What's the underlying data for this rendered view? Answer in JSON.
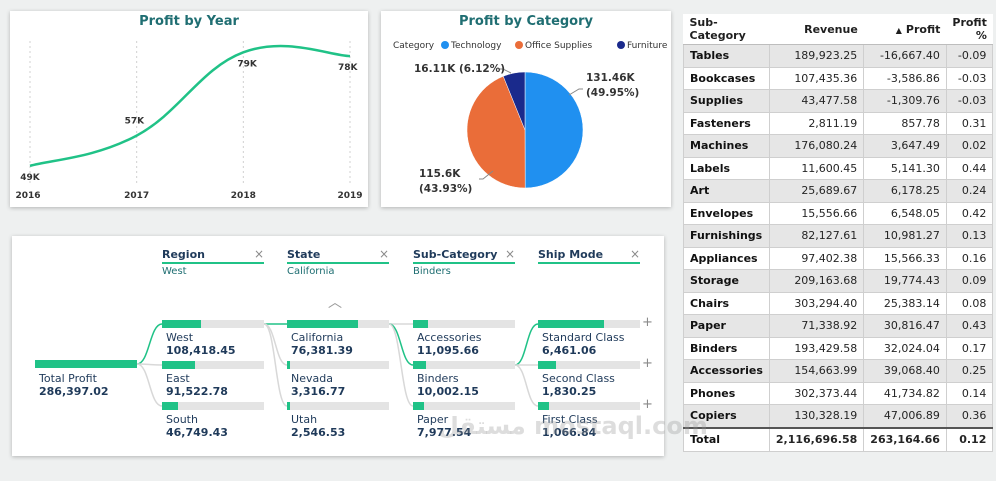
{
  "profit_by_year": {
    "title": "Profit by Year",
    "chart_data": {
      "type": "line",
      "x": [
        "2016",
        "2017",
        "2018",
        "2019"
      ],
      "y": [
        49,
        57,
        79,
        78
      ],
      "labels": [
        "49K",
        "57K",
        "79K",
        "78K"
      ],
      "ylim": [
        45,
        82
      ],
      "color": "#20c287"
    }
  },
  "profit_by_category": {
    "title": "Profit by Category",
    "legend_title": "Category",
    "chart_data": {
      "type": "pie",
      "slices": [
        {
          "name": "Technology",
          "value": 131.46,
          "label": "131.46K",
          "pct": "(49.95%)",
          "color": "#2090f0"
        },
        {
          "name": "Office Supplies",
          "value": 115.6,
          "label": "115.6K",
          "pct": "(43.93%)",
          "color": "#ea6d39"
        },
        {
          "name": "Furniture",
          "value": 16.11,
          "label": "16.11K (6.12%)",
          "pct": "",
          "color": "#1a2a8c"
        }
      ]
    }
  },
  "decomp": {
    "root": {
      "label": "Total Profit",
      "value": "286,397.02",
      "fill": 1.0
    },
    "levels": [
      {
        "title": "Region",
        "sub": "West",
        "nodes": [
          {
            "label": "West",
            "value": "108,418.45",
            "fill": 0.38
          },
          {
            "label": "East",
            "value": "91,522.78",
            "fill": 0.32
          },
          {
            "label": "South",
            "value": "46,749.43",
            "fill": 0.16
          }
        ]
      },
      {
        "title": "State",
        "sub": "California",
        "nodes": [
          {
            "label": "California",
            "value": "76,381.39",
            "fill": 0.7
          },
          {
            "label": "Nevada",
            "value": "3,316.77",
            "fill": 0.03
          },
          {
            "label": "Utah",
            "value": "2,546.53",
            "fill": 0.025
          }
        ]
      },
      {
        "title": "Sub-Category",
        "sub": "Binders",
        "nodes": [
          {
            "label": "Accessories",
            "value": "11,095.66",
            "fill": 0.145
          },
          {
            "label": "Binders",
            "value": "10,002.15",
            "fill": 0.13
          },
          {
            "label": "Paper",
            "value": "7,977.54",
            "fill": 0.105
          }
        ]
      },
      {
        "title": "Ship Mode",
        "sub": "",
        "nodes": [
          {
            "label": "Standard Class",
            "value": "6,461.06",
            "fill": 0.65
          },
          {
            "label": "Second Class",
            "value": "1,830.25",
            "fill": 0.18
          },
          {
            "label": "First Class",
            "value": "1,066.84",
            "fill": 0.11
          }
        ]
      }
    ]
  },
  "table": {
    "headers": [
      "Sub-Category",
      "Revenue",
      "Profit",
      "Profit %"
    ],
    "sort_arrow": "▲",
    "rows": [
      [
        "Tables",
        "189,923.25",
        "-16,667.40",
        "-0.09"
      ],
      [
        "Bookcases",
        "107,435.36",
        "-3,586.86",
        "-0.03"
      ],
      [
        "Supplies",
        "43,477.58",
        "-1,309.76",
        "-0.03"
      ],
      [
        "Fasteners",
        "2,811.19",
        "857.78",
        "0.31"
      ],
      [
        "Machines",
        "176,080.24",
        "3,647.49",
        "0.02"
      ],
      [
        "Labels",
        "11,600.45",
        "5,141.30",
        "0.44"
      ],
      [
        "Art",
        "25,689.67",
        "6,178.25",
        "0.24"
      ],
      [
        "Envelopes",
        "15,556.66",
        "6,548.05",
        "0.42"
      ],
      [
        "Furnishings",
        "82,127.61",
        "10,981.27",
        "0.13"
      ],
      [
        "Appliances",
        "97,402.38",
        "15,566.33",
        "0.16"
      ],
      [
        "Storage",
        "209,163.68",
        "19,774.43",
        "0.09"
      ],
      [
        "Chairs",
        "303,294.40",
        "25,383.14",
        "0.08"
      ],
      [
        "Paper",
        "71,338.92",
        "30,816.47",
        "0.43"
      ],
      [
        "Binders",
        "193,429.58",
        "32,024.04",
        "0.17"
      ],
      [
        "Accessories",
        "154,663.99",
        "39,068.40",
        "0.25"
      ],
      [
        "Phones",
        "302,373.44",
        "41,734.82",
        "0.14"
      ],
      [
        "Copiers",
        "130,328.19",
        "47,006.89",
        "0.36"
      ]
    ],
    "total": [
      "Total",
      "2,116,696.58",
      "263,164.66",
      "0.12"
    ]
  },
  "watermark": "مستقل mostaql.com"
}
